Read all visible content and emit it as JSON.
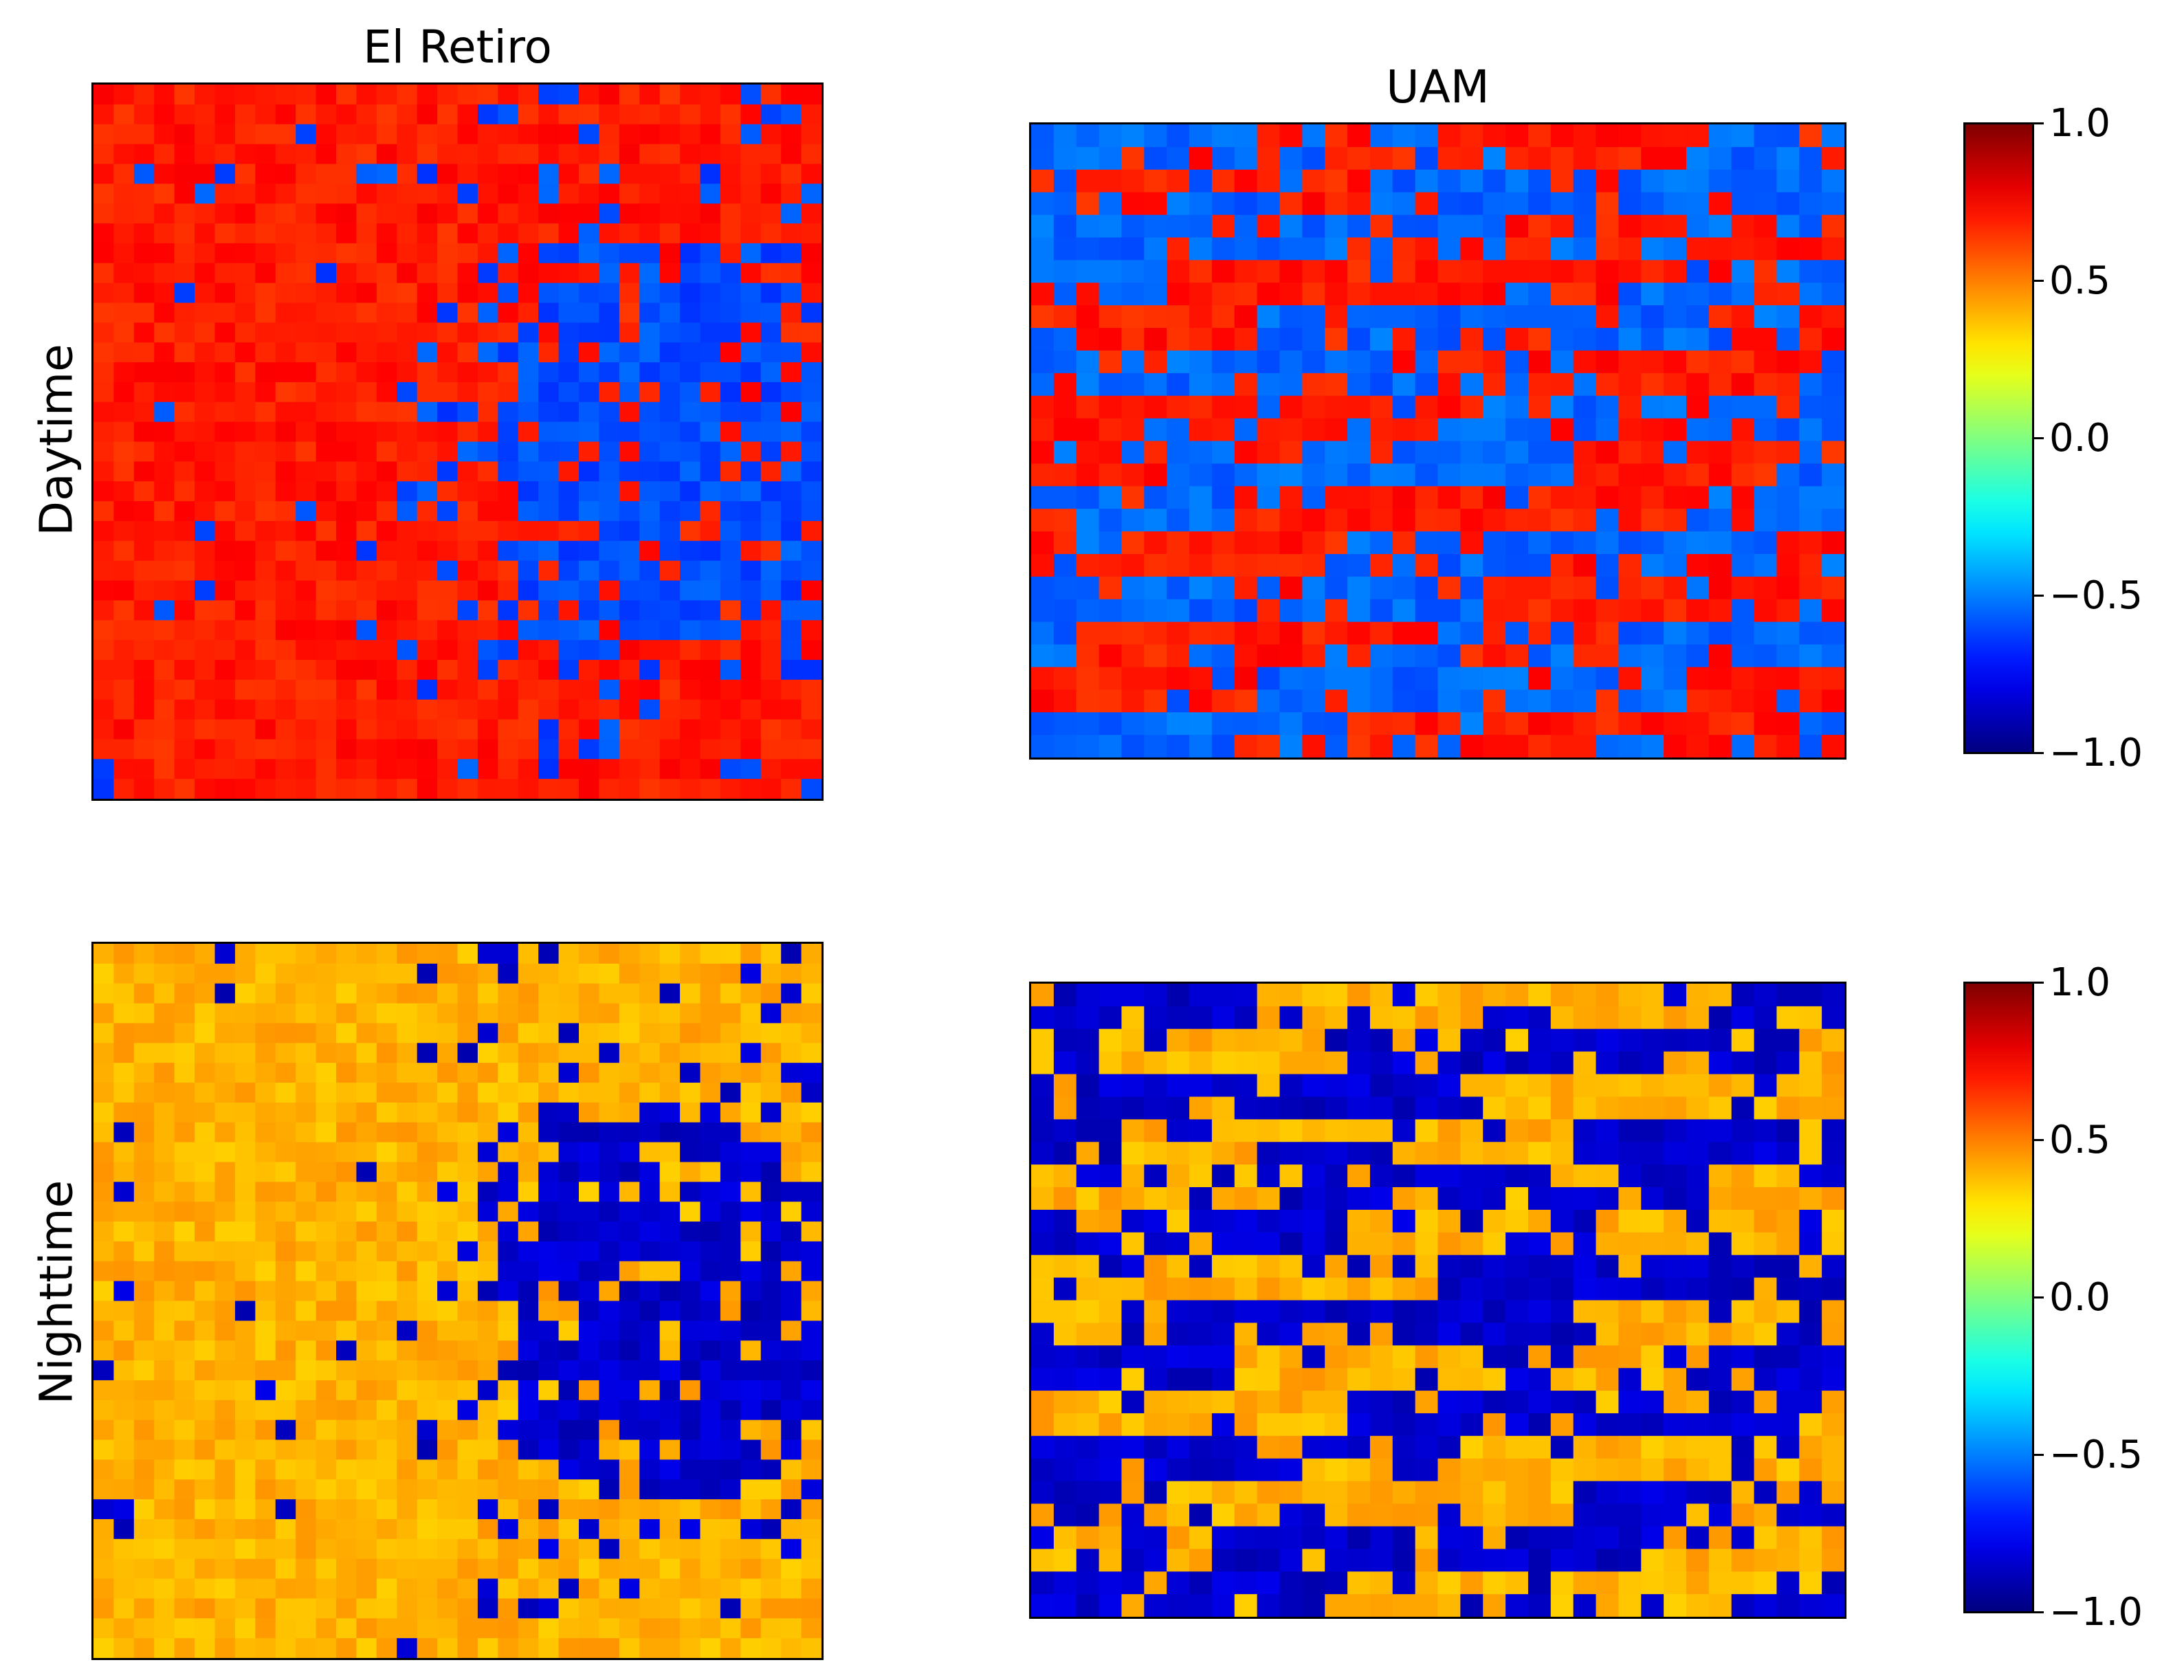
{
  "figure": {
    "col_titles": [
      "El Retiro",
      "UAM"
    ],
    "row_labels": [
      "Daytime",
      "Nighttime"
    ]
  },
  "colorbar": {
    "colormap": "jet",
    "range": [
      -1.0,
      1.0
    ],
    "tick_values": [
      1.0,
      0.5,
      0.0,
      -0.5,
      -1.0
    ],
    "tick_labels": [
      "1.0",
      "0.5",
      "0.0",
      "−0.5",
      "−1.0"
    ]
  },
  "chart_data": [
    {
      "type": "heatmap",
      "title": "El Retiro",
      "row_label": "Daytime",
      "grid": [
        36,
        36
      ],
      "colormap": "jet",
      "vmin": -1.0,
      "vmax": 1.0,
      "value_levels": {
        "main": 0.7,
        "alt": -0.6
      },
      "alt_region": {
        "col_range": [
          19,
          36
        ],
        "row_range": [
          8,
          30
        ]
      },
      "description": "mostly orange-red (~0.7) with a large blue (~-0.6) patch in the center-right and scattered blue cells"
    },
    {
      "type": "heatmap",
      "title": "UAM",
      "row_label": "Daytime",
      "grid": [
        28,
        36
      ],
      "colormap": "jet",
      "vmin": -1.0,
      "vmax": 1.0,
      "value_levels": {
        "main": 0.7,
        "alt": -0.55
      },
      "alt_region": {
        "col_range": [
          0,
          36
        ],
        "row_range": [
          0,
          28
        ]
      },
      "description": "checkerboard-like mix of orange (~0.7) and light blue (~-0.55) blocks"
    },
    {
      "type": "heatmap",
      "title": "",
      "row_label": "Nighttime",
      "grid": [
        36,
        36
      ],
      "colormap": "jet",
      "vmin": -1.0,
      "vmax": 1.0,
      "value_levels": {
        "main": 0.4,
        "alt": -0.85
      },
      "alt_region": {
        "col_range": [
          19,
          36
        ],
        "row_range": [
          8,
          30
        ]
      },
      "description": "mostly yellow-orange (~0.4) with dark blue (~-0.85) patch in center-right"
    },
    {
      "type": "heatmap",
      "title": "",
      "row_label": "Nighttime",
      "grid": [
        28,
        36
      ],
      "colormap": "jet",
      "vmin": -1.0,
      "vmax": 1.0,
      "value_levels": {
        "main": 0.4,
        "alt": -0.85
      },
      "alt_region": {
        "col_range": [
          0,
          36
        ],
        "row_range": [
          0,
          28
        ]
      },
      "description": "mix of yellow-orange (~0.4) and blue (~-0.85) blocks"
    }
  ]
}
